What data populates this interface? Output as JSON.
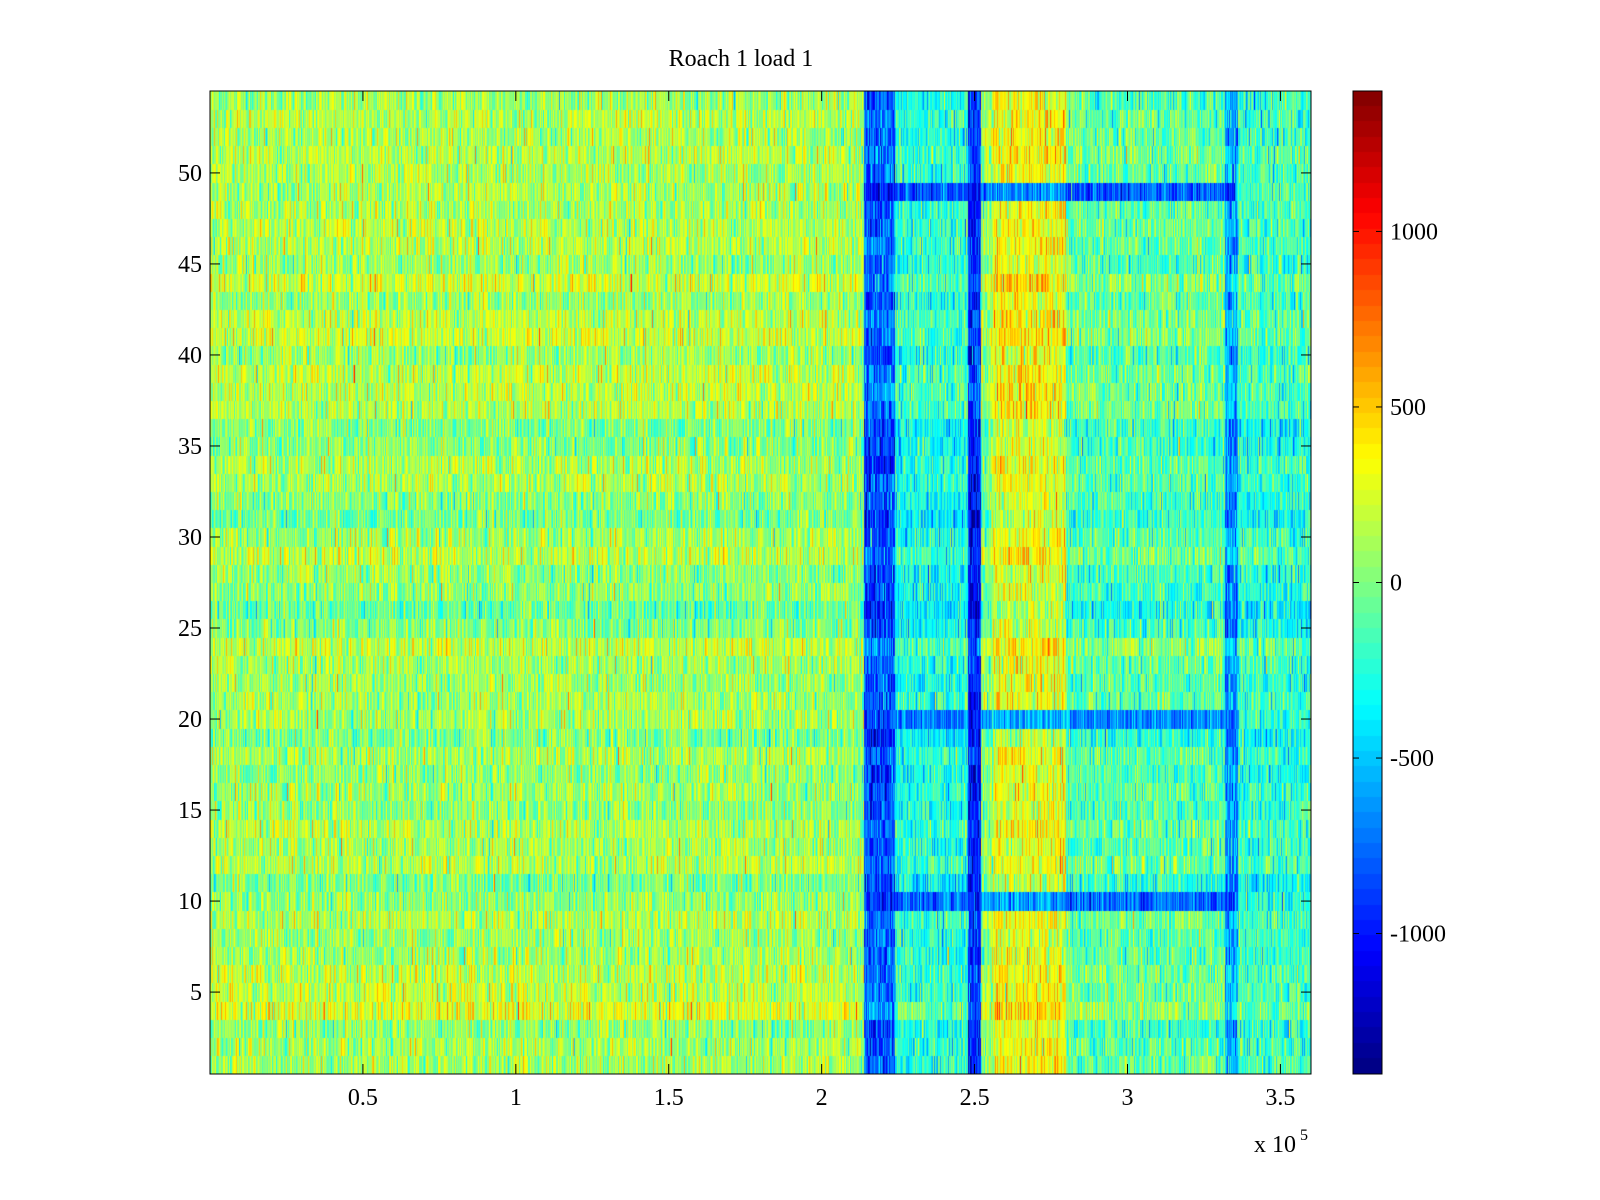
{
  "chart_data": {
    "type": "heatmap",
    "title": "Roach 1 load 1",
    "xlabel": "",
    "ylabel": "",
    "x_exponent_label": "x 10",
    "x_exponent_power": "5",
    "xlim": [
      0,
      3.6
    ],
    "ylim": [
      0.5,
      54.5
    ],
    "xticks": [
      {
        "value": 0.5,
        "label": "0.5"
      },
      {
        "value": 1,
        "label": "1"
      },
      {
        "value": 1.5,
        "label": "1.5"
      },
      {
        "value": 2,
        "label": "2"
      },
      {
        "value": 2.5,
        "label": "2.5"
      },
      {
        "value": 3,
        "label": "3"
      },
      {
        "value": 3.5,
        "label": "3.5"
      }
    ],
    "yticks": [
      {
        "value": 5,
        "label": "5"
      },
      {
        "value": 10,
        "label": "10"
      },
      {
        "value": 15,
        "label": "15"
      },
      {
        "value": 20,
        "label": "20"
      },
      {
        "value": 25,
        "label": "25"
      },
      {
        "value": 30,
        "label": "30"
      },
      {
        "value": 35,
        "label": "35"
      },
      {
        "value": 40,
        "label": "40"
      },
      {
        "value": 45,
        "label": "45"
      },
      {
        "value": 50,
        "label": "50"
      }
    ],
    "rows": 54,
    "colormap": "jet",
    "clim": [
      -1400,
      1400
    ],
    "colorbar_ticks": [
      {
        "value": 1000,
        "label": "1000"
      },
      {
        "value": 500,
        "label": "500"
      },
      {
        "value": 0,
        "label": "0"
      },
      {
        "value": -500,
        "label": "-500"
      },
      {
        "value": -1000,
        "label": "-1000"
      }
    ],
    "regions": [
      {
        "x_range": [
          0,
          2.12
        ],
        "approx_mean": 100,
        "description": "baseline, mostly green-yellow"
      },
      {
        "x_range": [
          2.14,
          2.24
        ],
        "approx_mean": -800,
        "description": "blue band"
      },
      {
        "x_range": [
          2.48,
          2.52
        ],
        "approx_mean": -950,
        "description": "narrow dark blue line"
      },
      {
        "x_range": [
          2.56,
          2.8
        ],
        "approx_mean": 300,
        "description": "orange-yellow band"
      },
      {
        "x_range": [
          3.32,
          3.36
        ],
        "approx_mean": -600,
        "description": "blue line"
      }
    ],
    "strong_rows": [
      {
        "row": 49,
        "x_range": [
          2.14,
          3.35
        ],
        "approx_value": -1100
      },
      {
        "row": 34,
        "x_range": [
          2.14,
          2.24
        ],
        "approx_value": -1100
      },
      {
        "row": 20,
        "x_range": [
          2.14,
          3.35
        ],
        "approx_value": -900
      },
      {
        "row": 10,
        "x_range": [
          2.14,
          3.35
        ],
        "approx_value": -1000
      }
    ]
  }
}
